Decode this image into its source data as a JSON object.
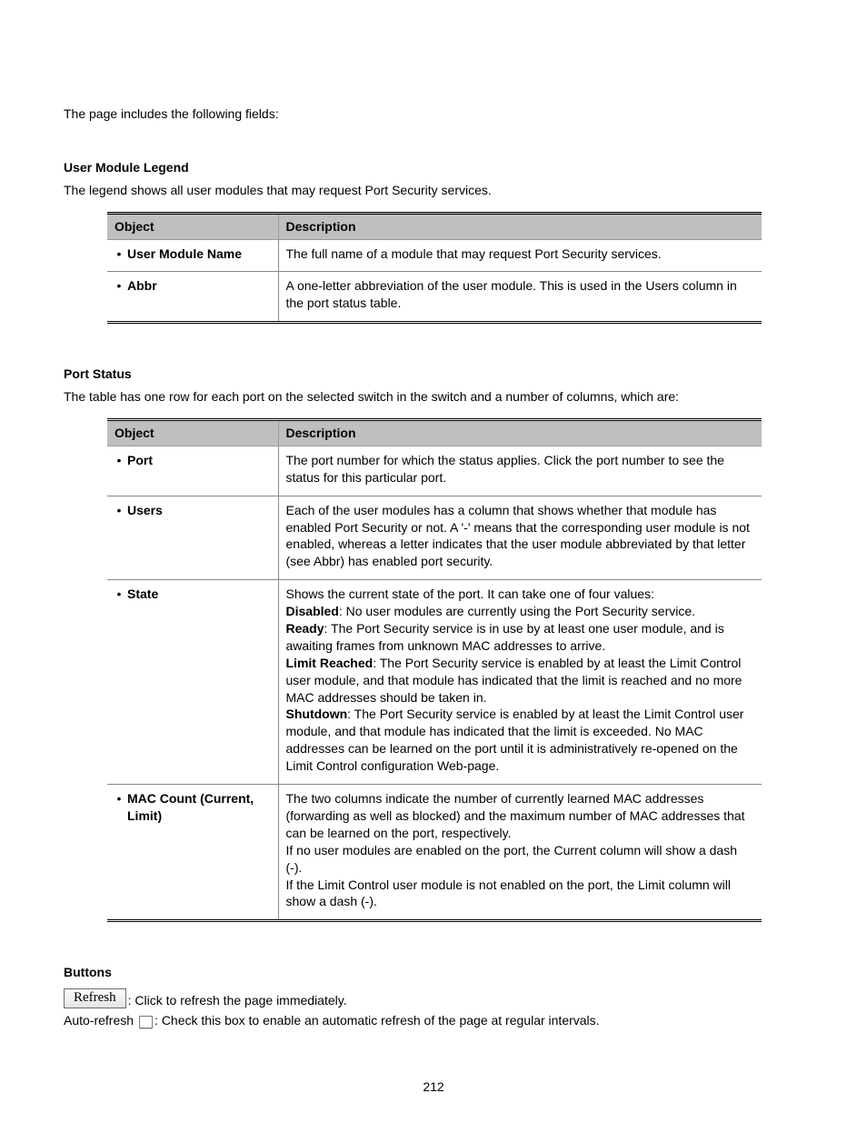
{
  "intro": "The page includes the following fields:",
  "legend": {
    "heading": "User Module Legend",
    "sub": "The legend shows all user modules that may request Port Security services.",
    "header_object": "Object",
    "header_description": "Description",
    "rows": [
      {
        "object": "User Module Name",
        "description": "The full name of a module that may request Port Security services."
      },
      {
        "object": "Abbr",
        "description": "A one-letter abbreviation of the user module. This is used in the Users column in the port status table."
      }
    ]
  },
  "status": {
    "heading": "Port Status",
    "sub": "The table has one row for each port on the selected switch in the switch and a number of columns, which are:",
    "header_object": "Object",
    "header_description": "Description",
    "rows": [
      {
        "object": "Port",
        "description": "The port number for which the status applies. Click the port number to see the status for this particular port."
      },
      {
        "object": "Users",
        "description": "Each of the user modules has a column that shows whether that module has enabled Port Security or not. A '-' means that the corresponding user module is not enabled, whereas a letter indicates that the user module abbreviated by that letter (see Abbr) has enabled port security."
      },
      {
        "object": "State",
        "state_intro": "Shows the current state of the port. It can take one of four values:",
        "state_items": [
          {
            "prefix": "Disabled",
            "text": ": No user modules are currently using the Port Security service."
          },
          {
            "prefix": "Ready",
            "text": ": The Port Security service is in use by at least one user module, and is awaiting frames from unknown MAC addresses to arrive."
          },
          {
            "prefix": "Limit Reached",
            "text": ": The Port Security service is enabled by at least the Limit Control user module, and that module has indicated that the limit is reached and no more MAC addresses should be taken in."
          },
          {
            "prefix": "Shutdown",
            "text": ": The Port Security service is enabled by at least the Limit Control user module, and that module has indicated that the limit is exceeded. No MAC addresses can be learned on the port until it is administratively re-opened on the Limit Control configuration Web-page."
          }
        ]
      },
      {
        "object": "MAC Count (Current, Limit)",
        "mac_lines": [
          "The two columns indicate the number of currently learned MAC addresses (forwarding as well as blocked) and the maximum number of MAC addresses that can be learned on the port, respectively.",
          "If no user modules are enabled on the port, the Current column will show a dash (-).",
          "If the Limit Control user module is not enabled on the port, the Limit column will show a dash (-)."
        ]
      }
    ]
  },
  "buttons": {
    "heading": "Buttons",
    "refresh_label": "Refresh",
    "refresh_text": ": Click to refresh the page immediately.",
    "autorefresh_label": "Auto-refresh",
    "autorefresh_text": ": Check this box to enable an automatic refresh of the page at regular intervals."
  },
  "page_number": "212",
  "colors": {
    "header_bg": "#bfbfbf",
    "border": "#888888",
    "text": "#000000",
    "background": "#ffffff"
  }
}
